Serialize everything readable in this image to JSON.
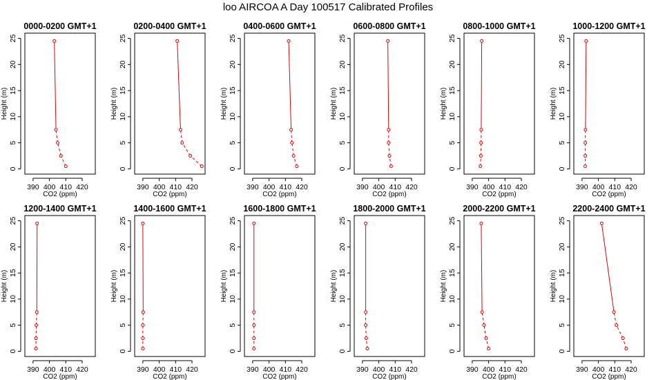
{
  "title": "loo AIRCOA A  Day 100517  Calibrated Profiles",
  "chart_data": {
    "type": "line",
    "series_color": "#dd0000",
    "xlim": [
      385,
      428
    ],
    "ylim": [
      -1,
      26
    ],
    "xticks": [
      "390",
      "400",
      "410",
      "420"
    ],
    "yticks": [
      "0",
      "5",
      "10",
      "15",
      "20",
      "25"
    ],
    "xlabel": "CO2 (ppm)",
    "ylabel": "Height (m)",
    "heights": [
      0.5,
      2.5,
      5,
      7.5,
      24.5
    ],
    "panels": [
      {
        "title": "0000-0200 GMT+1",
        "x": [
          410,
          407,
          405,
          404,
          403
        ]
      },
      {
        "title": "0200-0400 GMT+1",
        "x": [
          426,
          419,
          414,
          413,
          411
        ]
      },
      {
        "title": "0400-0600 GMT+1",
        "x": [
          417,
          415,
          414,
          413.5,
          412
        ]
      },
      {
        "title": "0600-0800 GMT+1",
        "x": [
          407.5,
          406.5,
          406,
          406,
          405.5
        ]
      },
      {
        "title": "0800-1000 GMT+1",
        "x": [
          395,
          395.3,
          395.4,
          395.5,
          395.8
        ]
      },
      {
        "title": "1000-1200 GMT+1",
        "x": [
          392,
          392,
          392,
          392.1,
          392.5
        ]
      },
      {
        "title": "1200-1400 GMT+1",
        "x": [
          391.8,
          391.8,
          392,
          392.3,
          392.5
        ]
      },
      {
        "title": "1400-1600 GMT+1",
        "x": [
          390,
          390,
          390,
          390.2,
          390
        ]
      },
      {
        "title": "1600-1800 GMT+1",
        "x": [
          390.8,
          390.8,
          390.8,
          390.8,
          390.8
        ]
      },
      {
        "title": "1800-2000 GMT+1",
        "x": [
          393,
          392.3,
          392,
          392,
          392
        ]
      },
      {
        "title": "2000-2200 GMT+1",
        "x": [
          400,
          398.5,
          397.2,
          396,
          395.5
        ]
      },
      {
        "title": "2200-2400 GMT+1",
        "x": [
          417,
          415,
          411,
          409.5,
          402
        ]
      }
    ]
  }
}
